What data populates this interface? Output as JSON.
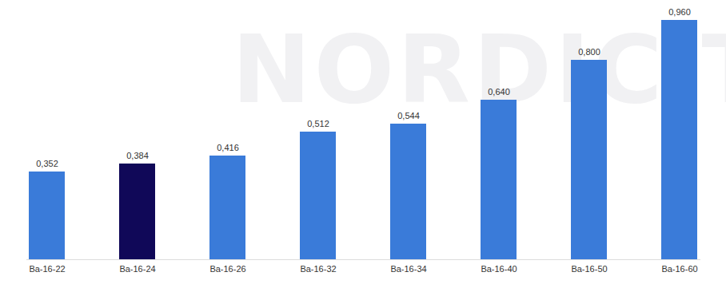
{
  "chart_data": {
    "type": "bar",
    "categories": [
      "Ba-16-22",
      "Ba-16-24",
      "Ba-16-26",
      "Ba-16-32",
      "Ba-16-34",
      "Ba-16-40",
      "Ba-16-50",
      "Ba-16-60"
    ],
    "values": [
      0.352,
      0.384,
      0.416,
      0.512,
      0.544,
      0.64,
      0.8,
      0.96
    ],
    "value_labels": [
      "0,352",
      "0,384",
      "0,416",
      "0,512",
      "0,544",
      "0,640",
      "0,800",
      "0,960"
    ],
    "colors": [
      "#3a7bd9",
      "#100858",
      "#3a7bd9",
      "#3a7bd9",
      "#3a7bd9",
      "#3a7bd9",
      "#3a7bd9",
      "#3a7bd9"
    ],
    "ylim": [
      0,
      1.04
    ],
    "data_labels": true,
    "tick_labels": "x",
    "annotations": [
      "NORDIC TEC"
    ]
  }
}
